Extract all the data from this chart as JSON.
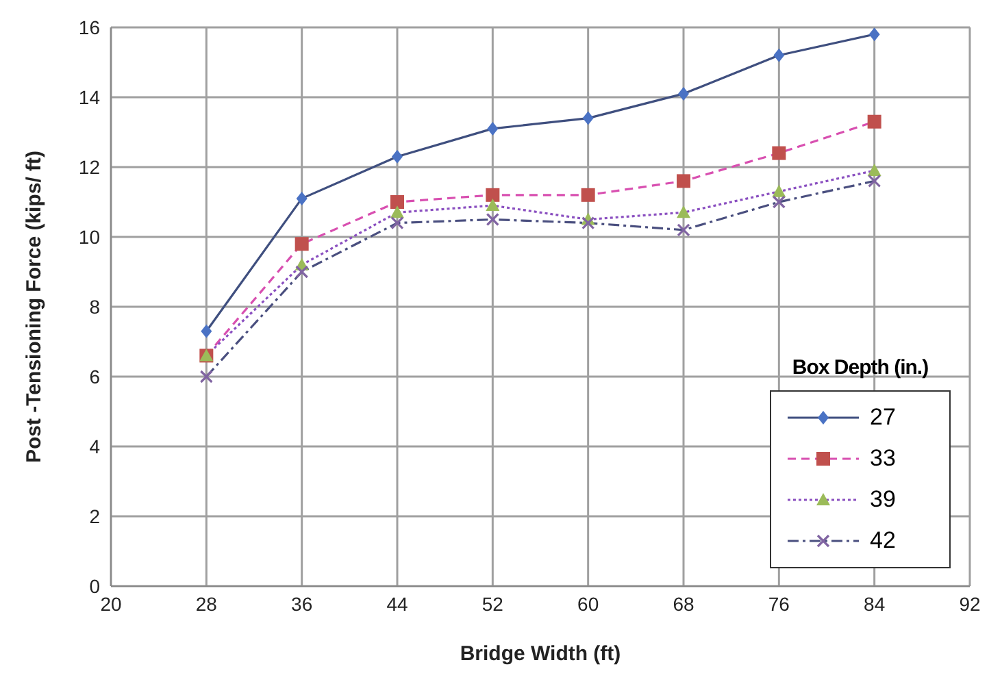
{
  "chart_data": {
    "type": "line",
    "xlabel": "Bridge Width (ft)",
    "ylabel": "Post -Tensioning Force  (kips/ ft)",
    "legend_title": "Box Depth (in.)",
    "legend": "bottom right",
    "grid": true,
    "x": [
      28,
      36,
      44,
      52,
      60,
      68,
      76,
      84
    ],
    "xlim": [
      20,
      92
    ],
    "xticks": [
      20,
      28,
      36,
      44,
      52,
      60,
      68,
      76,
      84,
      92
    ],
    "ylim": [
      0,
      16
    ],
    "yticks": [
      0,
      2,
      4,
      6,
      8,
      10,
      12,
      14,
      16
    ],
    "series": [
      {
        "name": "27",
        "color": "#4a72c4",
        "marker": "diamond",
        "line_style": "solid",
        "values": [
          7.3,
          11.1,
          12.3,
          13.1,
          13.4,
          14.1,
          15.2,
          15.8
        ]
      },
      {
        "name": "33",
        "color": "#c0504d",
        "marker": "square",
        "line_style": "dashed",
        "values": [
          6.6,
          9.8,
          11.0,
          11.2,
          11.2,
          11.6,
          12.4,
          13.3
        ]
      },
      {
        "name": "39",
        "color": "#9bbb59",
        "marker": "triangle",
        "line_style": "dotted",
        "values": [
          6.6,
          9.2,
          10.7,
          10.9,
          10.5,
          10.7,
          11.3,
          11.9
        ]
      },
      {
        "name": "42",
        "color": "#8064a2",
        "marker": "cross",
        "line_style": "dashdot",
        "values": [
          6.0,
          9.0,
          10.4,
          10.5,
          10.4,
          10.2,
          11.0,
          11.6
        ]
      }
    ]
  }
}
